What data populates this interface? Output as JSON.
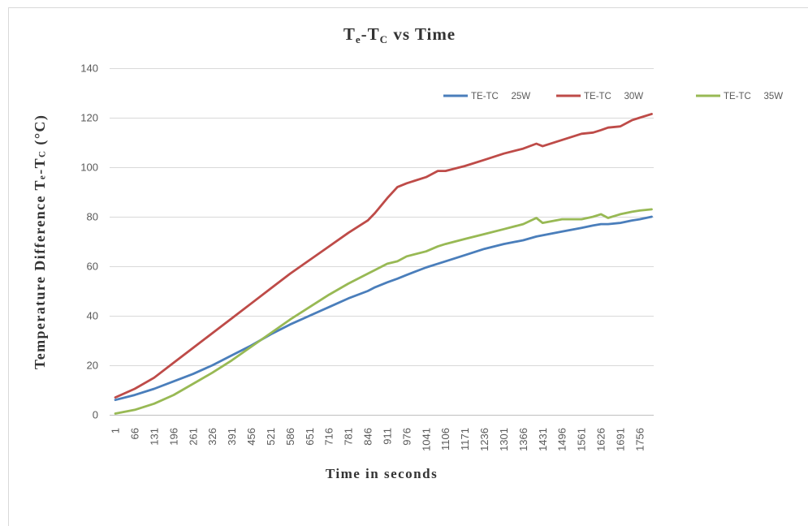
{
  "chart_data": {
    "type": "line",
    "title": [
      {
        "text": "T",
        "sub": false
      },
      {
        "text": "e",
        "sub": true
      },
      {
        "text": "-T",
        "sub": false
      },
      {
        "text": "C",
        "sub": true
      },
      {
        "text": " vs Time",
        "sub": false
      }
    ],
    "xlabel": "Time in seconds",
    "ylabel": [
      {
        "text": "Temperature Difference T",
        "sub": false
      },
      {
        "text": "e",
        "sub": true
      },
      {
        "text": "-T",
        "sub": false
      },
      {
        "text": "C",
        "sub": true
      },
      {
        "text": " (°C)",
        "sub": false
      }
    ],
    "xlim": [
      1,
      1800
    ],
    "ylim": [
      0,
      140
    ],
    "y_ticks": [
      0,
      20,
      40,
      60,
      80,
      100,
      120,
      140
    ],
    "x_ticks": [
      1,
      66,
      131,
      196,
      261,
      326,
      391,
      456,
      521,
      586,
      651,
      716,
      781,
      846,
      911,
      976,
      1041,
      1106,
      1171,
      1236,
      1301,
      1366,
      1431,
      1496,
      1561,
      1626,
      1691,
      1756
    ],
    "grid": "horizontal",
    "legend": "top-right",
    "frame_color": "#D9D9D9",
    "x": [
      1,
      66,
      131,
      196,
      261,
      326,
      391,
      456,
      521,
      586,
      651,
      716,
      781,
      846,
      870,
      911,
      945,
      976,
      1041,
      1080,
      1106,
      1171,
      1236,
      1301,
      1366,
      1410,
      1431,
      1496,
      1561,
      1600,
      1626,
      1650,
      1691,
      1730,
      1756,
      1796
    ],
    "series": [
      {
        "name": "TE-TC   25W",
        "color": "#4A7EBB",
        "values": [
          6,
          8,
          10.5,
          13.5,
          16.5,
          20,
          24,
          28,
          32.5,
          36.5,
          40,
          43.5,
          47,
          50,
          51.5,
          53.5,
          55,
          56.5,
          59.5,
          61,
          62,
          64.5,
          67,
          69,
          70.5,
          72,
          72.5,
          74,
          75.5,
          76.5,
          77,
          77,
          77.5,
          78.5,
          79,
          80
        ]
      },
      {
        "name": "TE-TC   30W",
        "color": "#BE4B48",
        "values": [
          7,
          10.5,
          15,
          21,
          27,
          33,
          39,
          45,
          51,
          57,
          62.5,
          68,
          73.5,
          78.5,
          81.5,
          87.5,
          92,
          93.5,
          96,
          98.5,
          98.5,
          100.5,
          103,
          105.5,
          107.5,
          109.5,
          108.5,
          111,
          113.5,
          114,
          115,
          116,
          116.5,
          119,
          120,
          121.5
        ]
      },
      {
        "name": "TE-TC   35W",
        "color": "#98B954",
        "values": [
          0.5,
          2,
          4.5,
          8,
          12.5,
          17,
          22,
          27.5,
          33,
          38.5,
          43.5,
          48.5,
          53,
          57,
          58.5,
          61,
          62,
          64,
          66,
          68,
          69,
          71,
          73,
          75,
          77,
          79.5,
          77.5,
          79,
          79,
          80,
          81,
          79.5,
          81,
          82,
          82.5,
          83
        ]
      }
    ]
  }
}
